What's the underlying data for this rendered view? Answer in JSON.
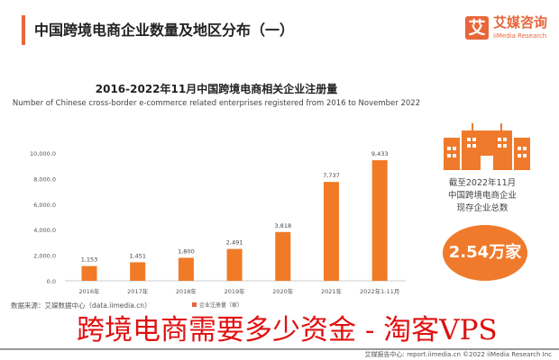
{
  "header": {
    "title": "中国跨境电商企业数量及地区分布（一）",
    "logo_mark": "艾",
    "logo_cn": "艾媒咨询",
    "logo_en": "iiMedia Research"
  },
  "colors": {
    "accent": "#e8663a",
    "bar": "#f07a26"
  },
  "chart_data": {
    "type": "bar",
    "title": "2016-2022年11月中国跨境电商相关企业注册量",
    "subtitle": "Number of Chinese cross-border e-commerce related enterprises registered from 2016 to November 2022",
    "categories": [
      "2016年",
      "2017年",
      "2018年",
      "2019年",
      "2020年",
      "2021年",
      "2022年1-11月"
    ],
    "series": [
      {
        "name": "企业注册量（家）",
        "values": [
          1153,
          1451,
          1800,
          2491,
          3818,
          7737,
          9433
        ]
      }
    ],
    "data_labels": [
      "1,153",
      "1,451",
      "1,800",
      "2,491",
      "3,818",
      "7,737",
      "9,433"
    ],
    "yticks": [
      "0.0",
      "2,000.0",
      "4,000.0",
      "6,000.0",
      "8,000.0",
      "10,000.0"
    ],
    "ylim": [
      0,
      10000
    ],
    "grid": false,
    "legend": "bottom"
  },
  "side": {
    "icon": "buildings-icon",
    "caption_lines": [
      "截至2022年11月",
      "中国跨境电商企业",
      "现存企业总数"
    ],
    "total": "2.54万家"
  },
  "source": "数据来源：艾媒数据中心（data.iimedia.cn）",
  "footer": "艾媒报告中心: report.iimedia.cn  ©2022  iiMedia Research Inc",
  "watermark": "跨境电商需要多少资金 - 淘客VPS"
}
